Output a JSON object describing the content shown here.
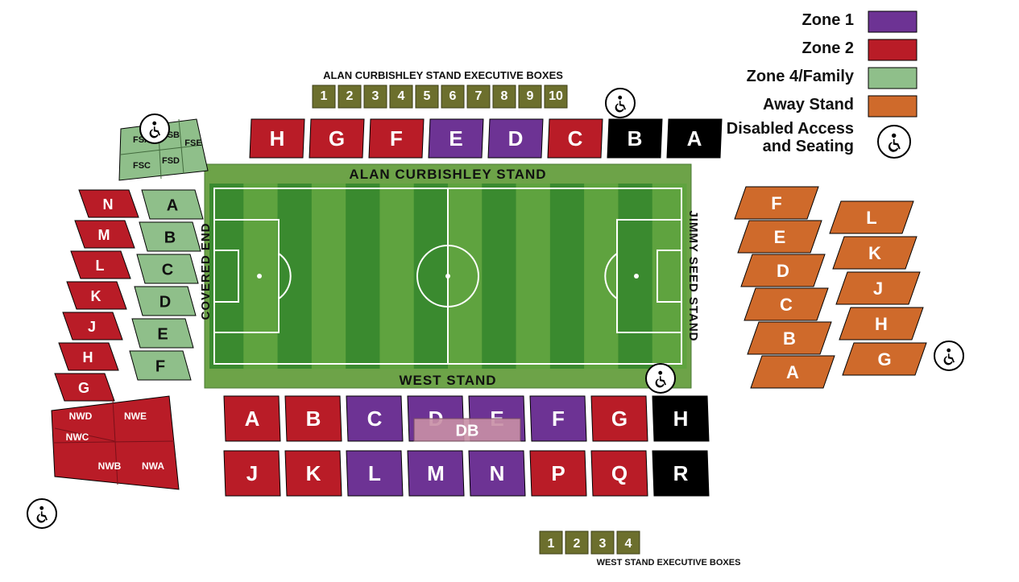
{
  "colors": {
    "zone1": "#6d3394",
    "zone2": "#b91c27",
    "zone4": "#8fbf8a",
    "away": "#cf6a2b",
    "black": "#000000",
    "exec_box": "#6c6f2d",
    "pitch_frame": "#6da348",
    "pitch_dark": "#3a8a2f",
    "pitch_light": "#5fa33f",
    "db_overlay": "#c88fa6",
    "text_white": "#ffffff",
    "text_black": "#111111",
    "legend_border": "#000000"
  },
  "legend": {
    "items": [
      {
        "label": "Zone 1",
        "fill": "zone1"
      },
      {
        "label": "Zone 2",
        "fill": "zone2"
      },
      {
        "label": "Zone 4/Family",
        "fill": "zone4"
      },
      {
        "label": "Away Stand",
        "fill": "away"
      }
    ],
    "disabled_label_l1": "Disabled Access",
    "disabled_label_l2": "and Seating"
  },
  "titles": {
    "top_exec": "ALAN CURBISHLEY STAND EXECUTIVE BOXES",
    "bottom_exec": "WEST STAND EXECUTIVE BOXES",
    "north_stand": "ALAN CURBISHLEY STAND",
    "south_stand": "WEST STAND",
    "west_stand": "COVERED END",
    "east_stand": "JIMMY SEED STAND"
  },
  "exec_boxes_top": [
    "1",
    "2",
    "3",
    "4",
    "5",
    "6",
    "7",
    "8",
    "9",
    "10"
  ],
  "exec_boxes_bottom": [
    "1",
    "2",
    "3",
    "4"
  ],
  "north_blocks": [
    {
      "l": "H",
      "c": "zone2"
    },
    {
      "l": "G",
      "c": "zone2"
    },
    {
      "l": "F",
      "c": "zone2"
    },
    {
      "l": "E",
      "c": "zone1"
    },
    {
      "l": "D",
      "c": "zone1"
    },
    {
      "l": "C",
      "c": "zone2"
    },
    {
      "l": "B",
      "c": "black"
    },
    {
      "l": "A",
      "c": "black"
    }
  ],
  "south_upper": [
    {
      "l": "A",
      "c": "zone2"
    },
    {
      "l": "B",
      "c": "zone2"
    },
    {
      "l": "C",
      "c": "zone1"
    },
    {
      "l": "D",
      "c": "zone1"
    },
    {
      "l": "E",
      "c": "zone1"
    },
    {
      "l": "F",
      "c": "zone1"
    },
    {
      "l": "G",
      "c": "zone2"
    },
    {
      "l": "H",
      "c": "black"
    }
  ],
  "south_lower": [
    {
      "l": "J",
      "c": "zone2"
    },
    {
      "l": "K",
      "c": "zone2"
    },
    {
      "l": "L",
      "c": "zone1"
    },
    {
      "l": "M",
      "c": "zone1"
    },
    {
      "l": "N",
      "c": "zone1"
    },
    {
      "l": "P",
      "c": "zone2"
    },
    {
      "l": "Q",
      "c": "zone2"
    },
    {
      "l": "R",
      "c": "black"
    }
  ],
  "db_label": "DB",
  "away_left": [
    "F",
    "E",
    "D",
    "C",
    "B",
    "A"
  ],
  "away_right": [
    "L",
    "K",
    "J",
    "H",
    "G"
  ],
  "covered_inner": [
    "A",
    "B",
    "C",
    "D",
    "E",
    "F"
  ],
  "covered_outer": [
    "N",
    "M",
    "L",
    "K",
    "J",
    "H",
    "G"
  ],
  "fs_blocks": [
    "FSA",
    "FSB",
    "FSC",
    "FSD",
    "FSE"
  ],
  "nw_blocks": [
    "NWA",
    "NWB",
    "NWC",
    "NWD",
    "NWE"
  ]
}
